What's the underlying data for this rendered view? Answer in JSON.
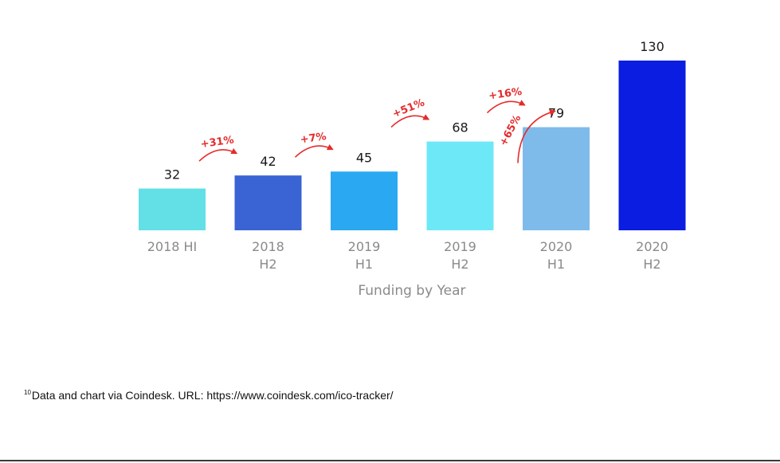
{
  "chart_data": {
    "type": "bar",
    "categories": [
      [
        "2018 HI"
      ],
      [
        "2018",
        "H2"
      ],
      [
        "2019",
        "H1"
      ],
      [
        "2019",
        "H2"
      ],
      [
        "2020",
        "H1"
      ],
      [
        "2020",
        "H2"
      ]
    ],
    "values": [
      32,
      42,
      45,
      68,
      79,
      130
    ],
    "bar_colors": [
      "#62e0e6",
      "#3a64d4",
      "#2ba8f2",
      "#6de8f7",
      "#7fbbea",
      "#0a1de0"
    ],
    "growth_labels": [
      "+31%",
      "+7%",
      "+51%",
      "+16%",
      "+65%"
    ],
    "growth_color": "#e52b2b",
    "xlabel": "Funding by Year",
    "ylabel": "",
    "title": "",
    "grid": false,
    "ylim": [
      0,
      130
    ]
  },
  "footnote": {
    "marker": "10",
    "text": "Data and chart via Coindesk. URL: https://www.coindesk.com/ico-tracker/"
  }
}
